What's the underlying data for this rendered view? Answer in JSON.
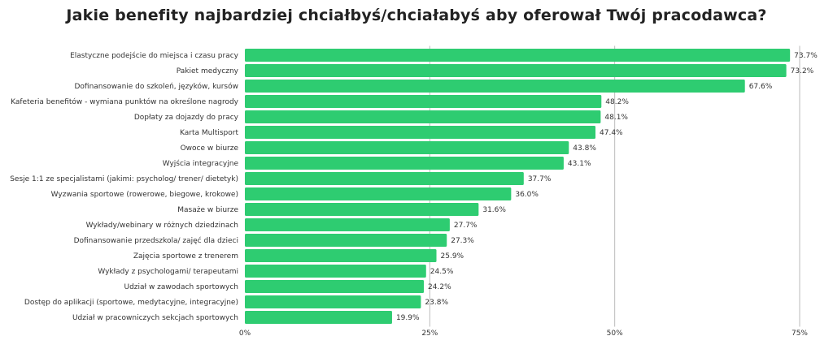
{
  "chart_data": {
    "type": "bar",
    "orientation": "horizontal",
    "title": "Jakie benefity najbardziej chciałbyś/chciałabyś aby oferował Twój pracodawca?",
    "categories": [
      "Elastyczne podejście do miejsca i czasu pracy",
      "Pakiet medyczny",
      "Dofinansowanie do szkoleń, języków, kursów",
      "Kafeteria benefitów - wymiana punktów na określone nagrody",
      "Dopłaty za dojazdy do pracy",
      "Karta Multisport",
      "Owoce w biurze",
      "Wyjścia integracyjne",
      "Sesje 1:1 ze specjalistami (jakimi: psycholog/ trener/ dietetyk)",
      "Wyzwania sportowe (rowerowe, biegowe, krokowe)",
      "Masaże w biurze",
      "Wykłady/webinary w różnych dziedzinach",
      "Dofinansowanie przedszkola/ zajęć dla dzieci",
      "Zajęcia sportowe z trenerem",
      "Wykłady z psychologami/ terapeutami",
      "Udział w zawodach sportowych",
      "Dostęp do aplikacji (sportowe, medytacyjne, integracyjne)",
      "Udział w pracowniczych sekcjach sportowych"
    ],
    "values": [
      73.7,
      73.2,
      67.6,
      48.2,
      48.1,
      47.4,
      43.8,
      43.1,
      37.7,
      36.0,
      31.6,
      27.7,
      27.3,
      25.9,
      24.5,
      24.2,
      23.8,
      19.9
    ],
    "data_labels": [
      "73.7%",
      "73.2%",
      "67.6%",
      "48.2%",
      "48.1%",
      "47.4%",
      "43.8%",
      "43.1%",
      "37.7%",
      "36.0%",
      "31.6%",
      "27.7%",
      "27.3%",
      "25.9%",
      "24.5%",
      "24.2%",
      "23.8%",
      "19.9%"
    ],
    "xticks": [
      0,
      25,
      50,
      75
    ],
    "xtick_labels": [
      "0%",
      "25%",
      "50%",
      "75%"
    ],
    "xlim": [
      0,
      79
    ],
    "grid": "vertical",
    "legend": "none",
    "bar_color": "#2ecc71",
    "grid_color": "#bbbbbb"
  }
}
